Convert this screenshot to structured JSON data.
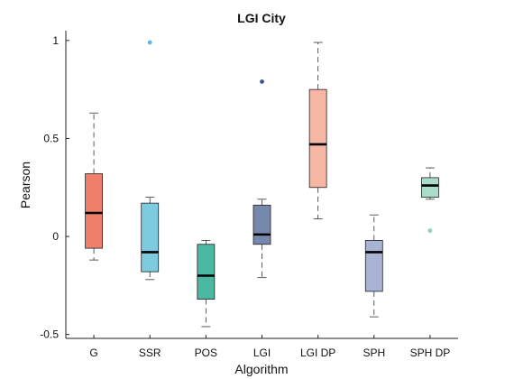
{
  "chart_data": {
    "type": "box",
    "title": "LGI City",
    "xlabel": "Algorithm",
    "ylabel": "Pearson",
    "ylim": [
      -0.52,
      1.05
    ],
    "yticks": [
      -0.5,
      0,
      0.5,
      1
    ],
    "ytick_labels": [
      "-0.5",
      "0",
      "0.5",
      "1"
    ],
    "grid": false,
    "categories": [
      "G",
      "SSR",
      "POS",
      "LGI",
      "LGI DP",
      "SPH",
      "SPH DP"
    ],
    "boxes": [
      {
        "name": "G",
        "whisker_low": -0.12,
        "q1": -0.06,
        "median": 0.12,
        "q3": 0.32,
        "whisker_high": 0.63,
        "outliers": [],
        "color": "#ef7f6b",
        "outlier_color": "#ef7f6b"
      },
      {
        "name": "SSR",
        "whisker_low": -0.22,
        "q1": -0.18,
        "median": -0.08,
        "q3": 0.17,
        "whisker_high": 0.2,
        "outliers": [
          0.99
        ],
        "color": "#7ecbe0",
        "outlier_color": "#59b8dc"
      },
      {
        "name": "POS",
        "whisker_low": -0.46,
        "q1": -0.32,
        "median": -0.2,
        "q3": -0.04,
        "whisker_high": -0.02,
        "outliers": [],
        "color": "#4bb8a2",
        "outlier_color": "#4bb8a2"
      },
      {
        "name": "LGI",
        "whisker_low": -0.21,
        "q1": -0.04,
        "median": 0.01,
        "q3": 0.16,
        "whisker_high": 0.19,
        "outliers": [
          0.79
        ],
        "color": "#7788ad",
        "outlier_color": "#3a5596"
      },
      {
        "name": "LGI DP",
        "whisker_low": 0.09,
        "q1": 0.25,
        "median": 0.47,
        "q3": 0.75,
        "whisker_high": 0.99,
        "outliers": [],
        "color": "#f7b6a4",
        "outlier_color": "#f7b6a4"
      },
      {
        "name": "SPH",
        "whisker_low": -0.41,
        "q1": -0.28,
        "median": -0.08,
        "q3": -0.02,
        "whisker_high": 0.11,
        "outliers": [],
        "color": "#a9b4d4",
        "outlier_color": "#a9b4d4"
      },
      {
        "name": "SPH DP",
        "whisker_low": 0.19,
        "q1": 0.2,
        "median": 0.26,
        "q3": 0.3,
        "whisker_high": 0.35,
        "outliers": [
          0.03
        ],
        "color": "#a9dcc9",
        "outlier_color": "#8fd0b6"
      }
    ]
  }
}
